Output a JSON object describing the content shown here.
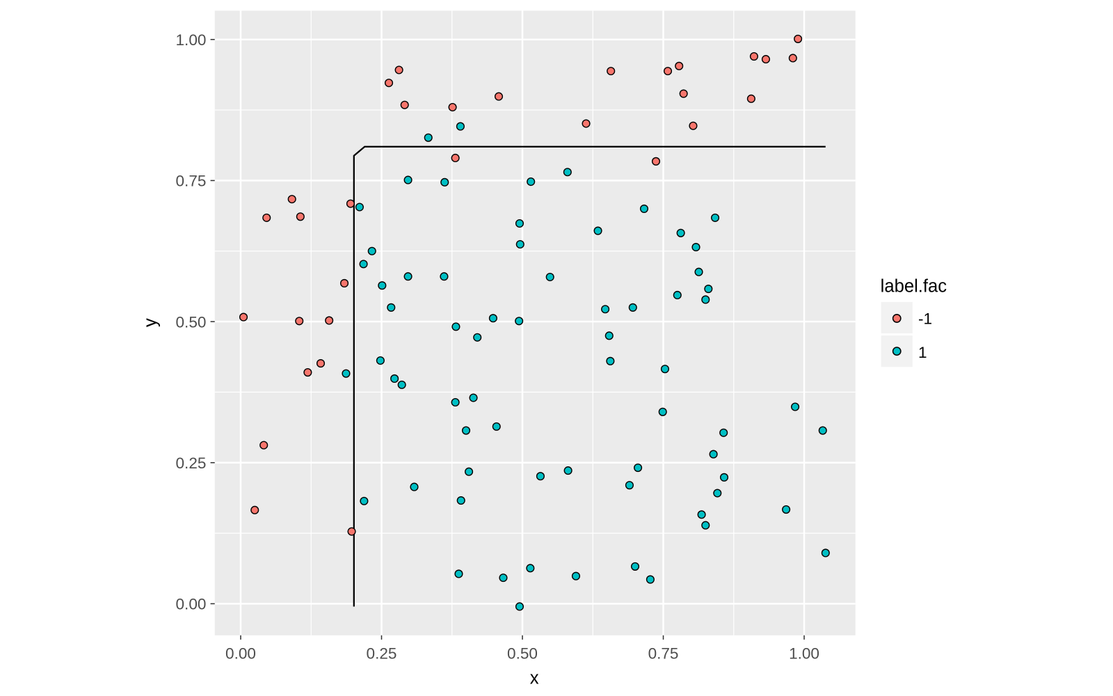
{
  "chart_data": {
    "type": "scatter",
    "title": "",
    "xlabel": "x",
    "ylabel": "y",
    "xlim": [
      -0.046,
      1.091
    ],
    "ylim": [
      -0.056,
      1.051
    ],
    "grid": true,
    "x_ticks": [
      0,
      0.25,
      0.5,
      0.75,
      1.0
    ],
    "x_tick_labels": [
      "0.00",
      "0.25",
      "0.50",
      "0.75",
      "1.00"
    ],
    "y_ticks": [
      0,
      0.25,
      0.5,
      0.75,
      1.0
    ],
    "y_tick_labels": [
      "0.00",
      "0.25",
      "0.50",
      "0.75",
      "1.00"
    ],
    "legend": {
      "title": "label.fac",
      "placement": "right",
      "entries": [
        {
          "label": "-1",
          "color": "#F8766D"
        },
        {
          "label": "1",
          "color": "#00BFC4"
        }
      ]
    },
    "series": [
      {
        "name": "-1",
        "color": "#F8766D",
        "points": [
          [
            0.005,
            0.508
          ],
          [
            0.046,
            0.684
          ],
          [
            0.091,
            0.717
          ],
          [
            0.106,
            0.686
          ],
          [
            0.195,
            0.709
          ],
          [
            0.263,
            0.923
          ],
          [
            0.281,
            0.946
          ],
          [
            0.291,
            0.884
          ],
          [
            0.376,
            0.88
          ],
          [
            0.381,
            0.79
          ],
          [
            0.458,
            0.899
          ],
          [
            0.613,
            0.851
          ],
          [
            0.657,
            0.944
          ],
          [
            0.758,
            0.944
          ],
          [
            0.778,
            0.953
          ],
          [
            0.786,
            0.904
          ],
          [
            0.803,
            0.847
          ],
          [
            0.737,
            0.784
          ],
          [
            0.906,
            0.895
          ],
          [
            0.911,
            0.97
          ],
          [
            0.932,
            0.965
          ],
          [
            0.98,
            0.967
          ],
          [
            0.989,
            1.001
          ],
          [
            0.184,
            0.568
          ],
          [
            0.104,
            0.501
          ],
          [
            0.157,
            0.502
          ],
          [
            0.142,
            0.426
          ],
          [
            0.119,
            0.41
          ],
          [
            0.041,
            0.281
          ],
          [
            0.025,
            0.166
          ],
          [
            0.197,
            0.128
          ]
        ]
      },
      {
        "name": "1",
        "color": "#00BFC4",
        "points": [
          [
            0.333,
            0.826
          ],
          [
            0.39,
            0.846
          ],
          [
            0.297,
            0.751
          ],
          [
            0.362,
            0.747
          ],
          [
            0.515,
            0.748
          ],
          [
            0.58,
            0.765
          ],
          [
            0.211,
            0.703
          ],
          [
            0.495,
            0.674
          ],
          [
            0.496,
            0.637
          ],
          [
            0.716,
            0.7
          ],
          [
            0.634,
            0.661
          ],
          [
            0.842,
            0.684
          ],
          [
            0.781,
            0.657
          ],
          [
            0.808,
            0.632
          ],
          [
            0.233,
            0.625
          ],
          [
            0.218,
            0.602
          ],
          [
            0.297,
            0.58
          ],
          [
            0.361,
            0.58
          ],
          [
            0.549,
            0.579
          ],
          [
            0.813,
            0.588
          ],
          [
            0.251,
            0.564
          ],
          [
            0.83,
            0.558
          ],
          [
            0.775,
            0.547
          ],
          [
            0.825,
            0.539
          ],
          [
            0.267,
            0.525
          ],
          [
            0.647,
            0.522
          ],
          [
            0.696,
            0.525
          ],
          [
            0.448,
            0.506
          ],
          [
            0.494,
            0.501
          ],
          [
            0.382,
            0.491
          ],
          [
            0.42,
            0.472
          ],
          [
            0.654,
            0.475
          ],
          [
            0.656,
            0.43
          ],
          [
            0.248,
            0.431
          ],
          [
            0.187,
            0.408
          ],
          [
            0.273,
            0.399
          ],
          [
            0.286,
            0.388
          ],
          [
            0.753,
            0.416
          ],
          [
            0.381,
            0.357
          ],
          [
            0.413,
            0.365
          ],
          [
            0.4,
            0.307
          ],
          [
            0.454,
            0.314
          ],
          [
            0.749,
            0.34
          ],
          [
            0.984,
            0.349
          ],
          [
            1.033,
            0.307
          ],
          [
            0.857,
            0.303
          ],
          [
            0.839,
            0.265
          ],
          [
            0.858,
            0.224
          ],
          [
            0.846,
            0.196
          ],
          [
            0.705,
            0.241
          ],
          [
            0.69,
            0.21
          ],
          [
            0.581,
            0.236
          ],
          [
            0.532,
            0.226
          ],
          [
            0.405,
            0.234
          ],
          [
            0.308,
            0.207
          ],
          [
            0.219,
            0.182
          ],
          [
            0.391,
            0.183
          ],
          [
            0.818,
            0.158
          ],
          [
            0.825,
            0.139
          ],
          [
            0.968,
            0.167
          ],
          [
            1.038,
            0.09
          ],
          [
            0.7,
            0.066
          ],
          [
            0.727,
            0.043
          ],
          [
            0.595,
            0.049
          ],
          [
            0.514,
            0.063
          ],
          [
            0.466,
            0.046
          ],
          [
            0.387,
            0.053
          ],
          [
            0.495,
            -0.005
          ]
        ]
      }
    ],
    "boundary_line": [
      [
        0.201,
        -0.005
      ],
      [
        0.201,
        0.794
      ],
      [
        0.22,
        0.81
      ],
      [
        1.038,
        0.81
      ]
    ]
  }
}
